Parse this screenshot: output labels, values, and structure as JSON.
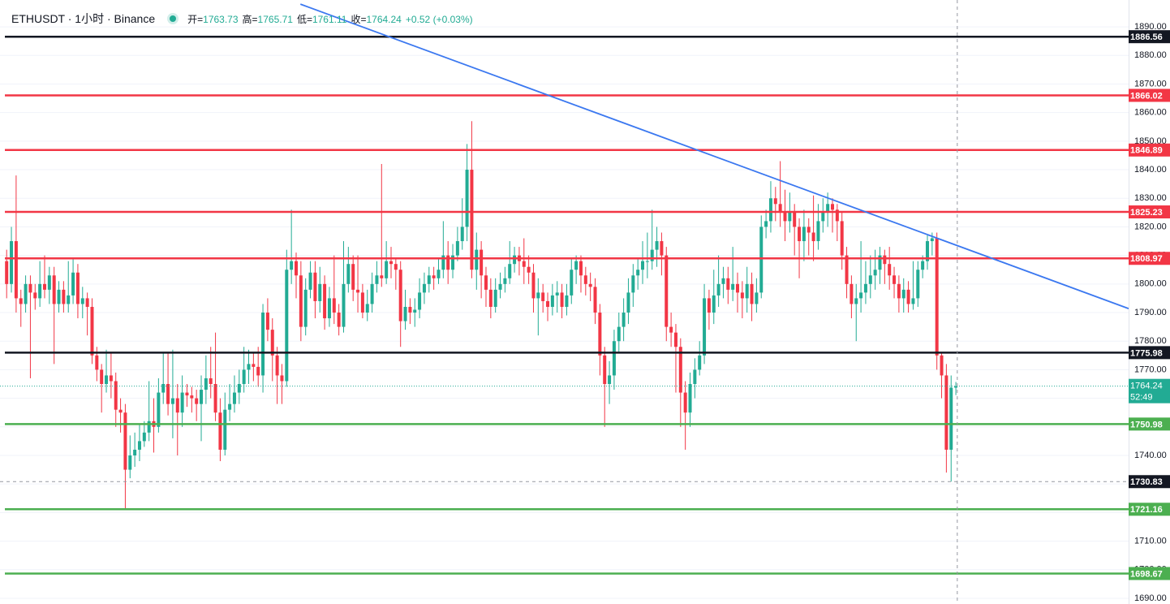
{
  "chart_data": {
    "type": "candlestick",
    "title": "ETHUSDT · 1小时 · Binance",
    "ohlc_header": [
      {
        "label": "开=",
        "value": 1763.73
      },
      {
        "label": "高=",
        "value": 1765.71
      },
      {
        "label": "低=",
        "value": 1761.11
      },
      {
        "label": "收=",
        "value": 1764.24
      }
    ],
    "change": {
      "value": 0.52,
      "label": "+0.52"
    },
    "change_pct": {
      "value": 0.03,
      "label": "(+0.03%)"
    },
    "up_color": "#22ab94",
    "down_color": "#f23645",
    "open": [
      1808,
      1800,
      1815,
      1795,
      1793,
      1800,
      1797,
      1795,
      1800,
      1798,
      1803,
      1793,
      1798,
      1793,
      1796,
      1804,
      1793,
      1795,
      1792,
      1775,
      1770,
      1765,
      1768,
      1766,
      1756,
      1755,
      1735,
      1740,
      1742,
      1745,
      1748,
      1752,
      1750,
      1762,
      1765,
      1758,
      1760,
      1755,
      1762,
      1761,
      1760,
      1758,
      1763,
      1767,
      1765,
      1755,
      1742,
      1756,
      1758,
      1762,
      1765,
      1770,
      1772,
      1771,
      1768,
      1790,
      1784,
      1775,
      1768,
      1766,
      1805,
      1808,
      1803,
      1785,
      1798,
      1804,
      1794,
      1800,
      1788,
      1795,
      1790,
      1785,
      1800,
      1807,
      1798,
      1797,
      1790,
      1793,
      1800,
      1803,
      1802,
      1808,
      1807,
      1805,
      1787,
      1792,
      1790,
      1791,
      1797,
      1800,
      1803,
      1802,
      1805,
      1810,
      1805,
      1810,
      1815,
      1820,
      1840,
      1805,
      1812,
      1803,
      1798,
      1792,
      1798,
      1800,
      1802,
      1807,
      1810,
      1808,
      1806,
      1804,
      1795,
      1797,
      1794,
      1792,
      1796,
      1797,
      1792,
      1796,
      1805,
      1808,
      1803,
      1800,
      1799,
      1790,
      1775,
      1765,
      1768,
      1780,
      1785,
      1790,
      1797,
      1803,
      1805,
      1808,
      1808,
      1812,
      1815,
      1810,
      1785,
      1783,
      1778,
      1762,
      1755,
      1765,
      1770,
      1775,
      1795,
      1790,
      1796,
      1800,
      1802,
      1798,
      1800,
      1797,
      1795,
      1800,
      1793,
      1797,
      1820,
      1822,
      1830,
      1828,
      1825,
      1822,
      1825,
      1820,
      1815,
      1820,
      1818,
      1815,
      1822,
      1825,
      1828,
      1826,
      1822,
      1810,
      1800,
      1793,
      1795,
      1797,
      1800,
      1803,
      1805,
      1810,
      1807,
      1803,
      1800,
      1795,
      1798,
      1793,
      1795,
      1805,
      1808,
      1815,
      1816,
      1775,
      1768,
      1742,
      1763.73
    ],
    "high": [
      1812,
      1820,
      1838,
      1798,
      1803,
      1803,
      1800,
      1808,
      1810,
      1806,
      1806,
      1801,
      1801,
      1808,
      1809,
      1807,
      1799,
      1797,
      1795,
      1778,
      1772,
      1777,
      1776,
      1769,
      1760,
      1758,
      1747,
      1748,
      1751,
      1752,
      1766,
      1760,
      1767,
      1776,
      1776,
      1777,
      1765,
      1768,
      1765,
      1764,
      1763,
      1768,
      1775,
      1778,
      1783,
      1760,
      1762,
      1765,
      1768,
      1770,
      1778,
      1777,
      1776,
      1778,
      1793,
      1795,
      1788,
      1778,
      1772,
      1812,
      1826,
      1811,
      1808,
      1802,
      1808,
      1808,
      1806,
      1803,
      1799,
      1810,
      1793,
      1815,
      1813,
      1810,
      1810,
      1800,
      1798,
      1804,
      1808,
      1842,
      1815,
      1813,
      1809,
      1808,
      1798,
      1795,
      1795,
      1802,
      1804,
      1806,
      1806,
      1809,
      1822,
      1815,
      1814,
      1820,
      1830,
      1849,
      1857,
      1818,
      1815,
      1806,
      1802,
      1802,
      1804,
      1806,
      1815,
      1813,
      1813,
      1816,
      1810,
      1807,
      1802,
      1800,
      1797,
      1800,
      1801,
      1800,
      1800,
      1809,
      1810,
      1810,
      1806,
      1804,
      1802,
      1793,
      1778,
      1773,
      1784,
      1790,
      1795,
      1802,
      1807,
      1809,
      1815,
      1818,
      1826,
      1820,
      1818,
      1813,
      1790,
      1786,
      1781,
      1766,
      1769,
      1774,
      1780,
      1800,
      1798,
      1805,
      1810,
      1806,
      1806,
      1813,
      1804,
      1801,
      1806,
      1804,
      1802,
      1824,
      1826,
      1836,
      1834,
      1843,
      1833,
      1832,
      1828,
      1823,
      1826,
      1823,
      1831,
      1828,
      1830,
      1832,
      1830,
      1828,
      1825,
      1813,
      1803,
      1800,
      1815,
      1808,
      1810,
      1812,
      1813,
      1812,
      1813,
      1806,
      1803,
      1802,
      1801,
      1808,
      1808,
      1810,
      1817,
      1818,
      1818,
      1776,
      1772,
      1768,
      1765.71
    ],
    "low": [
      1795,
      1797,
      1790,
      1785,
      1790,
      1767,
      1791,
      1792,
      1795,
      1793,
      1772,
      1790,
      1790,
      1790,
      1793,
      1788,
      1788,
      1782,
      1772,
      1766,
      1755,
      1762,
      1760,
      1750,
      1748,
      1721,
      1732,
      1736,
      1738,
      1743,
      1745,
      1741,
      1748,
      1758,
      1754,
      1746,
      1740,
      1750,
      1757,
      1755,
      1752,
      1745,
      1758,
      1760,
      1752,
      1738,
      1740,
      1752,
      1755,
      1758,
      1762,
      1765,
      1766,
      1764,
      1762,
      1780,
      1766,
      1758,
      1758,
      1764,
      1800,
      1795,
      1780,
      1782,
      1795,
      1788,
      1790,
      1784,
      1785,
      1786,
      1782,
      1783,
      1797,
      1794,
      1790,
      1788,
      1787,
      1790,
      1797,
      1799,
      1800,
      1802,
      1798,
      1778,
      1784,
      1786,
      1785,
      1788,
      1793,
      1797,
      1798,
      1800,
      1802,
      1800,
      1802,
      1808,
      1812,
      1815,
      1802,
      1798,
      1795,
      1792,
      1788,
      1790,
      1795,
      1797,
      1800,
      1804,
      1803,
      1800,
      1800,
      1790,
      1782,
      1790,
      1787,
      1789,
      1790,
      1788,
      1789,
      1793,
      1800,
      1797,
      1796,
      1794,
      1786,
      1768,
      1750,
      1758,
      1763,
      1776,
      1780,
      1786,
      1792,
      1798,
      1800,
      1802,
      1805,
      1806,
      1803,
      1780,
      1778,
      1762,
      1750,
      1742,
      1750,
      1760,
      1768,
      1772,
      1784,
      1786,
      1792,
      1795,
      1793,
      1794,
      1790,
      1788,
      1790,
      1787,
      1790,
      1795,
      1816,
      1818,
      1822,
      1820,
      1815,
      1818,
      1810,
      1802,
      1808,
      1810,
      1808,
      1812,
      1818,
      1820,
      1818,
      1815,
      1805,
      1795,
      1788,
      1780,
      1790,
      1793,
      1795,
      1798,
      1800,
      1800,
      1798,
      1795,
      1790,
      1790,
      1790,
      1791,
      1792,
      1802,
      1805,
      1810,
      1770,
      1760,
      1734,
      1730.83,
      1761.11
    ],
    "close": [
      1800,
      1815,
      1795,
      1793,
      1800,
      1797,
      1795,
      1800,
      1798,
      1803,
      1793,
      1798,
      1793,
      1796,
      1804,
      1793,
      1795,
      1792,
      1775,
      1770,
      1765,
      1768,
      1766,
      1756,
      1755,
      1735,
      1740,
      1742,
      1745,
      1748,
      1752,
      1750,
      1762,
      1765,
      1758,
      1760,
      1755,
      1762,
      1761,
      1760,
      1758,
      1763,
      1767,
      1765,
      1755,
      1742,
      1756,
      1758,
      1762,
      1765,
      1770,
      1772,
      1771,
      1768,
      1790,
      1784,
      1775,
      1768,
      1766,
      1805,
      1808,
      1803,
      1785,
      1798,
      1804,
      1794,
      1800,
      1788,
      1795,
      1790,
      1785,
      1800,
      1807,
      1798,
      1797,
      1790,
      1793,
      1800,
      1803,
      1802,
      1808,
      1807,
      1805,
      1787,
      1792,
      1790,
      1791,
      1797,
      1800,
      1803,
      1802,
      1805,
      1810,
      1805,
      1810,
      1815,
      1820,
      1840,
      1805,
      1812,
      1803,
      1798,
      1792,
      1798,
      1800,
      1802,
      1807,
      1810,
      1808,
      1806,
      1804,
      1795,
      1797,
      1794,
      1792,
      1796,
      1797,
      1792,
      1796,
      1805,
      1808,
      1803,
      1800,
      1799,
      1790,
      1775,
      1765,
      1768,
      1780,
      1785,
      1790,
      1797,
      1803,
      1805,
      1808,
      1808,
      1812,
      1815,
      1810,
      1785,
      1783,
      1778,
      1762,
      1755,
      1765,
      1770,
      1775,
      1795,
      1790,
      1796,
      1800,
      1802,
      1798,
      1800,
      1797,
      1795,
      1800,
      1793,
      1797,
      1820,
      1822,
      1830,
      1828,
      1825,
      1822,
      1825,
      1820,
      1815,
      1820,
      1818,
      1815,
      1822,
      1825,
      1828,
      1826,
      1822,
      1810,
      1800,
      1793,
      1795,
      1797,
      1800,
      1803,
      1805,
      1810,
      1807,
      1803,
      1800,
      1795,
      1798,
      1793,
      1795,
      1805,
      1808,
      1815,
      1816,
      1775,
      1768,
      1742,
      1763.73,
      1764.24
    ],
    "xlim": [
      -1.4,
      236.4
    ],
    "ylim": [
      1688,
      1899.4
    ],
    "yticks": [
      {
        "value": 1690,
        "label": "1690.00"
      },
      {
        "value": 1700,
        "label": "1700.00"
      },
      {
        "value": 1710,
        "label": "1710.00"
      },
      {
        "value": 1720,
        "label": "1720.00"
      },
      {
        "value": 1730,
        "label": "1730.00"
      },
      {
        "value": 1740,
        "label": "1740.00"
      },
      {
        "value": 1750,
        "label": "1750.00"
      },
      {
        "value": 1760,
        "label": "1760.00"
      },
      {
        "value": 1770,
        "label": "1770.00"
      },
      {
        "value": 1780,
        "label": "1780.00"
      },
      {
        "value": 1790,
        "label": "1790.00"
      },
      {
        "value": 1800,
        "label": "1800.00"
      },
      {
        "value": 1810,
        "label": "1810.00"
      },
      {
        "value": 1820,
        "label": "1820.00"
      },
      {
        "value": 1830,
        "label": "1830.00"
      },
      {
        "value": 1840,
        "label": "1840.00"
      },
      {
        "value": 1850,
        "label": "1850.00"
      },
      {
        "value": 1860,
        "label": "1860.00"
      },
      {
        "value": 1870,
        "label": "1870.00"
      },
      {
        "value": 1880,
        "label": "1880.00"
      },
      {
        "value": 1890,
        "label": "1890.00"
      }
    ],
    "grid": true,
    "levels": [
      {
        "value": 1886.56,
        "color": "#131722"
      },
      {
        "value": 1866.02,
        "color": "#f23645"
      },
      {
        "value": 1846.89,
        "color": "#f23645"
      },
      {
        "value": 1825.23,
        "color": "#f23645"
      },
      {
        "value": 1808.97,
        "color": "#f23645"
      },
      {
        "value": 1775.98,
        "color": "#131722"
      },
      {
        "value": 1750.98,
        "color": "#4caf50"
      },
      {
        "value": 1721.16,
        "color": "#4caf50"
      },
      {
        "value": 1698.67,
        "color": "#4caf50"
      }
    ],
    "trendline": {
      "x": [
        61.9,
        236.4
      ],
      "values": [
        1897.95,
        1791.4
      ],
      "color": "#3b78f0"
    },
    "last_price": {
      "value": 1764.24,
      "countdown": "52:49"
    },
    "crosshair": {
      "x": 200.3,
      "value": 1730.83
    }
  }
}
